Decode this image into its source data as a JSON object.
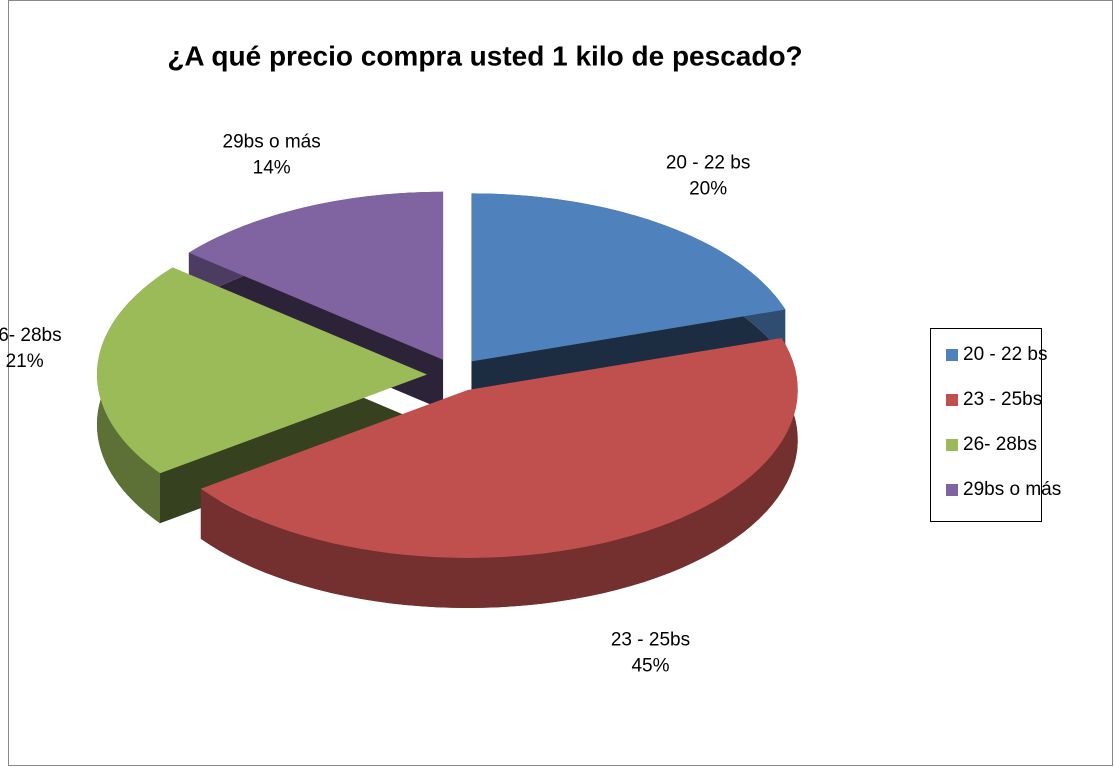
{
  "chart_data": {
    "type": "pie",
    "title": "¿A qué precio compra usted 1 kilo de pescado?",
    "categories": [
      "20 - 22 bs",
      "23 - 25bs",
      "26- 28bs",
      "29bs o más"
    ],
    "values": [
      20,
      45,
      21,
      14
    ],
    "value_labels": [
      "20%",
      "45%",
      "21%",
      "14%"
    ],
    "colors": [
      "#4f81bd",
      "#c0504d",
      "#9bbb59",
      "#8064a2"
    ],
    "legend": "right"
  }
}
